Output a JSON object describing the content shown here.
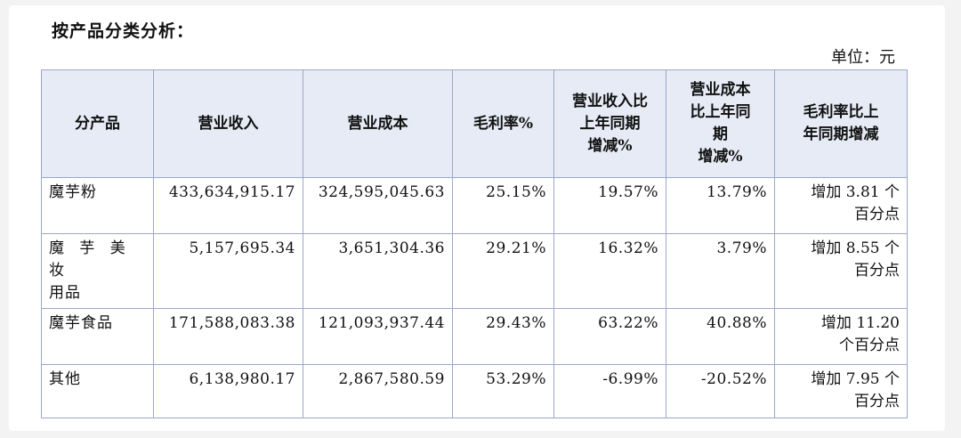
{
  "title": "按产品分类分析：",
  "unit": "单位：元",
  "headers": {
    "product": "分产品",
    "revenue": "营业收入",
    "cost": "营业成本",
    "margin": "毛利率%",
    "rev_change": [
      "营业收入比",
      "上年同期",
      "增减%"
    ],
    "cost_change": [
      "营业成本",
      "比上年同",
      "期",
      "增减%"
    ],
    "margin_change": [
      "毛利率比上",
      "年同期增减"
    ]
  },
  "rows": [
    {
      "name": "魔芋粉",
      "revenue": "433,634,915.17",
      "cost": "324,595,045.63",
      "margin": "25.15%",
      "rev_change": "19.57%",
      "cost_change": "13.79%",
      "margin_change": [
        "增加 3.81 个",
        "百分点"
      ]
    },
    {
      "name": "魔芋美妆用品",
      "name_lines": [
        "魔 芋 美 妆",
        "用品"
      ],
      "revenue": "5,157,695.34",
      "cost": "3,651,304.36",
      "margin": "29.21%",
      "rev_change": "16.32%",
      "cost_change": "3.79%",
      "margin_change": [
        "增加 8.55 个",
        "百分点"
      ]
    },
    {
      "name": "魔芋食品",
      "revenue": "171,588,083.38",
      "cost": "121,093,937.44",
      "margin": "29.43%",
      "rev_change": "63.22%",
      "cost_change": "40.88%",
      "margin_change": [
        "增加 11.20",
        "个百分点"
      ]
    },
    {
      "name": "其他",
      "revenue": "6,138,980.17",
      "cost": "2,867,580.59",
      "margin": "53.29%",
      "rev_change": "-6.99%",
      "cost_change": "-20.52%",
      "margin_change": [
        "增加 7.95 个",
        "百分点"
      ]
    }
  ]
}
